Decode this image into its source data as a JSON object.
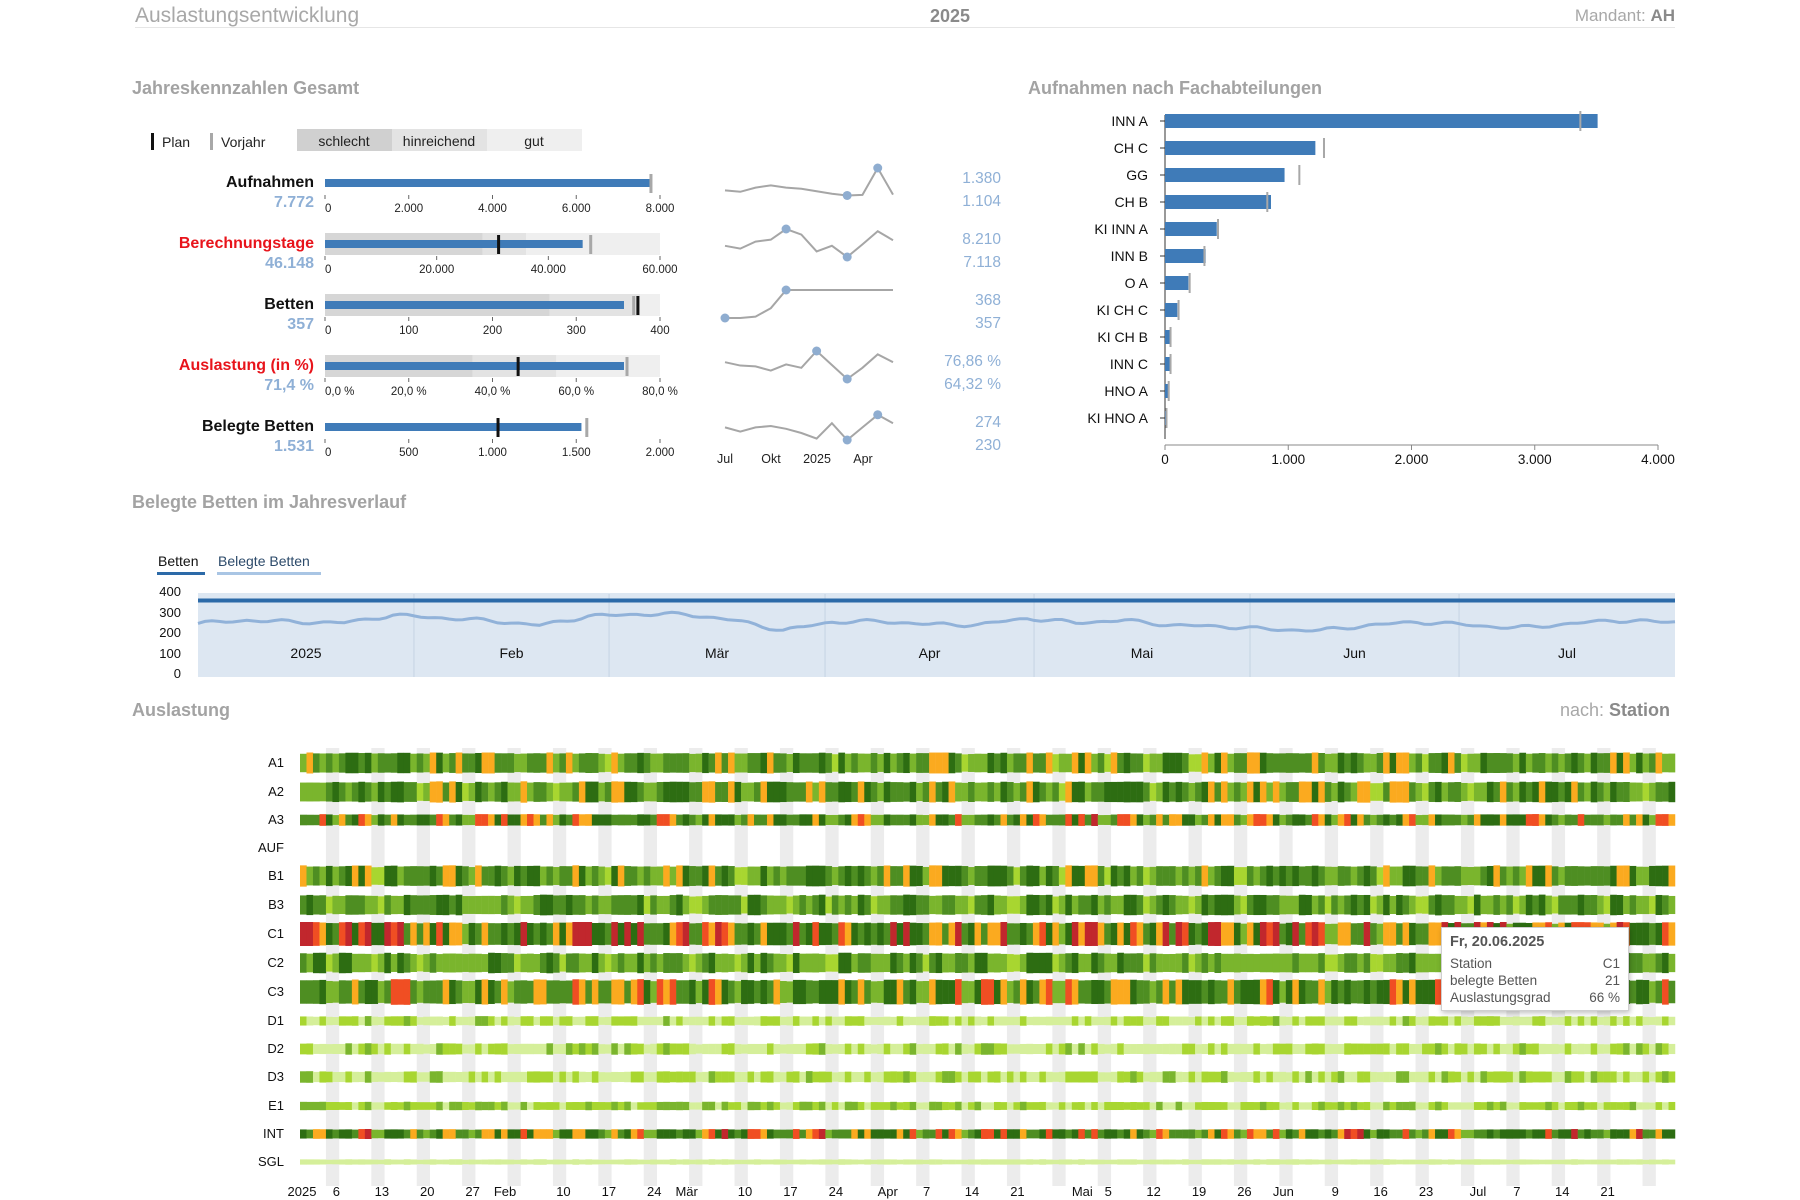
{
  "header": {
    "title": "Auslastungsentwicklung",
    "year": "2025",
    "client_label": "Mandant:",
    "client_value": "AH"
  },
  "kpi": {
    "section_title": "Jahreskennzahlen Gesamt",
    "legend": {
      "plan": "Plan",
      "prior": "Vorjahr",
      "bands": [
        "schlecht",
        "hinreichend",
        "gut"
      ]
    },
    "spark_ticks": [
      "Jul",
      "Okt",
      "2025",
      "Apr"
    ],
    "rows": [
      {
        "label": "Aufnahmen",
        "label_red": false,
        "value_text": "7.772",
        "value": 7772,
        "plan": null,
        "prior": 7772,
        "max": 8000,
        "ticks": [
          "0",
          "2.000",
          "4.000",
          "6.000",
          "8.000"
        ],
        "bands": null,
        "spark_max": "1.380",
        "spark_min": "1.104",
        "spark": [
          0.2,
          0.15,
          0.3,
          0.38,
          0.3,
          0.26,
          0.17,
          0.08,
          0.02,
          0.04,
          1.0,
          0.05
        ]
      },
      {
        "label": "Berechnungstage",
        "label_red": true,
        "value_text": "46.148",
        "value": 46148,
        "plan": 31000,
        "prior": 47500,
        "max": 60000,
        "ticks": [
          "0",
          "20.000",
          "40.000",
          "60.000"
        ],
        "bands": [
          47,
          60
        ],
        "spark_max": "8.210",
        "spark_min": "7.118",
        "spark": [
          0.4,
          0.3,
          0.55,
          0.62,
          1.0,
          0.8,
          0.2,
          0.4,
          0.0,
          0.45,
          0.92,
          0.6
        ]
      },
      {
        "label": "Betten",
        "label_red": false,
        "value_text": "357",
        "value": 357,
        "plan": 373,
        "prior": 368,
        "max": 400,
        "ticks": [
          "0",
          "100",
          "200",
          "300",
          "400"
        ],
        "bands": [
          67,
          94
        ],
        "spark_max": "368",
        "spark_min": "357",
        "spark": [
          0.0,
          0.0,
          0.05,
          0.35,
          1.0,
          1.0,
          1.0,
          1.0,
          1.0,
          1.0,
          1.0,
          1.0
        ]
      },
      {
        "label": "Auslastung (in %)",
        "label_red": true,
        "value_text": "71,4 %",
        "value": 71.4,
        "plan": 46,
        "prior": 72,
        "max": 80,
        "ticks": [
          "0,0 %",
          "20,0 %",
          "40,0 %",
          "60,0 %",
          "80,0 %"
        ],
        "bands": [
          44,
          69
        ],
        "spark_max": "76,86 %",
        "spark_min": "64,32 %",
        "spark": [
          0.6,
          0.48,
          0.45,
          0.3,
          0.52,
          0.4,
          1.0,
          0.5,
          0.0,
          0.4,
          0.88,
          0.6
        ]
      },
      {
        "label": "Belegte Betten",
        "label_red": false,
        "value_text": "1.531",
        "value": 1531,
        "plan": 1030,
        "prior": 1560,
        "max": 2000,
        "ticks": [
          "0",
          "500",
          "1.000",
          "1.500",
          "2.000"
        ],
        "bands": null,
        "spark_max": "274",
        "spark_min": "230",
        "spark": [
          0.45,
          0.3,
          0.45,
          0.5,
          0.4,
          0.25,
          0.05,
          0.6,
          0.0,
          0.45,
          0.9,
          0.6
        ]
      }
    ]
  },
  "chart_data": [
    {
      "type": "bar",
      "title": "Aufnahmen nach Fachabteilungen",
      "orientation": "horizontal",
      "categories": [
        "INN A",
        "CH C",
        "GG",
        "CH B",
        "KI INN A",
        "INN B",
        "O A",
        "KI CH C",
        "KI CH B",
        "INN C",
        "HNO A",
        "KI HNO A"
      ],
      "values": [
        3510,
        1220,
        970,
        860,
        420,
        330,
        190,
        100,
        40,
        40,
        25,
        10
      ],
      "prior": [
        3370,
        1290,
        1090,
        830,
        430,
        320,
        200,
        110,
        45,
        45,
        30,
        12
      ],
      "xlim": [
        0,
        4000
      ],
      "ticks": [
        "0",
        "1.000",
        "2.000",
        "3.000",
        "4.000"
      ]
    },
    {
      "type": "line",
      "title": "Belegte Betten im Jahresverlauf",
      "tabs": [
        "Betten",
        "Belegte Betten"
      ],
      "ylim": [
        0,
        400
      ],
      "y_ticks": [
        "400",
        "300",
        "200",
        "100",
        "0"
      ],
      "months": [
        "2025",
        "Feb",
        "Mär",
        "Apr",
        "Mai",
        "Jun",
        "Jul"
      ],
      "month_starts_days": [
        0,
        31,
        59,
        90,
        120,
        151,
        181
      ],
      "total_days": 212,
      "series": [
        {
          "name": "Betten",
          "constant": 368
        },
        {
          "name": "Belegte Betten",
          "weekly": [
            255,
            270,
            262,
            258,
            295,
            282,
            268,
            245,
            290,
            300,
            300,
            270,
            220,
            262,
            265,
            250,
            248,
            280,
            258,
            270,
            245,
            240,
            225,
            220,
            245,
            262,
            248,
            232,
            250,
            270,
            262
          ]
        }
      ]
    },
    {
      "type": "heatmap",
      "title": "Auslastung",
      "group_label": "nach:",
      "group_value": "Station",
      "rows": [
        "A1",
        "A2",
        "A3",
        "AUF",
        "B1",
        "B3",
        "C1",
        "C2",
        "C3",
        "D1",
        "D2",
        "D3",
        "E1",
        "INT",
        "SGL"
      ],
      "x_labels": [
        "2025",
        "6",
        "13",
        "20",
        "27",
        "Feb",
        "10",
        "17",
        "24",
        "Mär",
        "10",
        "17",
        "24",
        "Apr",
        "7",
        "14",
        "21",
        "Mai",
        "5",
        "12",
        "19",
        "26",
        "Jun",
        "9",
        "16",
        "23",
        "Jul",
        "7",
        "14",
        "21"
      ],
      "days": 212,
      "row_level": [
        0.78,
        0.8,
        0.85,
        0.0,
        0.8,
        0.74,
        0.9,
        0.72,
        0.84,
        0.45,
        0.48,
        0.5,
        0.55,
        0.86,
        0.2
      ],
      "tooltip": {
        "date": "Fr, 20.06.2025",
        "station_label": "Station",
        "station": "C1",
        "beds_label": "belegte Betten",
        "beds": "21",
        "rate_label": "Auslastungsgrad",
        "rate": "66 %"
      }
    }
  ]
}
